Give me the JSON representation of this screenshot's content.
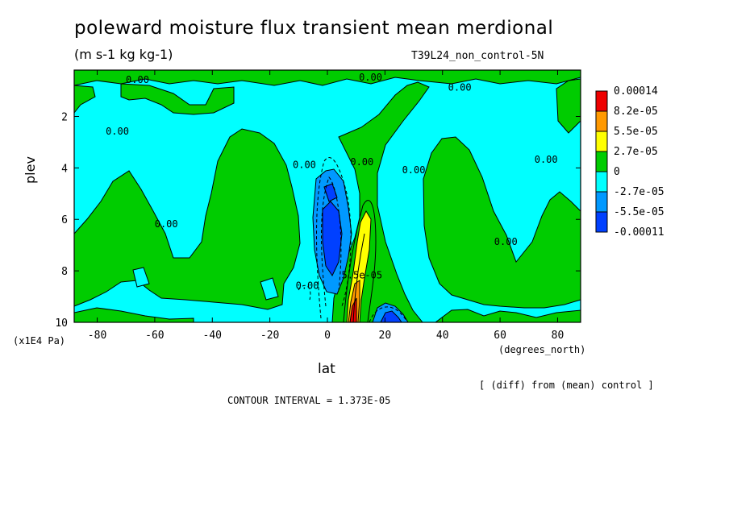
{
  "title": "poleward moisture flux transient mean merdional",
  "units": "(m s-1 kg kg-1)",
  "run_id": "T39L24_non_control-5N",
  "note": "[ (diff) from (mean) control ]",
  "contour_interval": "CONTOUR INTERVAL = 1.373E-05",
  "colors": {
    "red": "#ee0000",
    "orange": "#ff9900",
    "yellow": "#ffff00",
    "green": "#00cc00",
    "cyan": "#00ffff",
    "sky": "#0099ff",
    "blue": "#0040ff"
  },
  "chart_data": {
    "type": "heatmap",
    "title": "poleward moisture flux transient mean merdional",
    "xlabel": "lat",
    "xunit": "(degrees_north)",
    "ylabel": "plev",
    "yunit": "(x1E4 Pa)",
    "xlim": [
      -88,
      88
    ],
    "ylim": [
      10,
      0.2
    ],
    "x_ticks": [
      -80,
      -60,
      -40,
      -20,
      0,
      20,
      40,
      60,
      80
    ],
    "x_tick_labels": [
      "-80",
      "-60",
      "-40",
      "-20",
      "0",
      "20",
      "40",
      "60",
      "80"
    ],
    "y_ticks": [
      2,
      4,
      6,
      8,
      10
    ],
    "y_tick_labels": [
      "2",
      "4",
      "6",
      "8",
      "10"
    ],
    "legend": {
      "placement": "right",
      "labels": [
        "0.00014",
        "8.2e-05",
        "5.5e-05",
        "2.7e-05",
        "0",
        "-2.7e-05",
        "-5.5e-05",
        "-0.00011"
      ],
      "colors": [
        "#ee0000",
        "#ff9900",
        "#ffff00",
        "#00cc00",
        "#00ffff",
        "#0099ff",
        "#0040ff"
      ]
    },
    "contour_labels": [
      {
        "text": "0.00",
        "lat": -66,
        "plev": 0.7
      },
      {
        "text": "0.00",
        "lat": -73,
        "plev": 2.7
      },
      {
        "text": "0.00",
        "lat": -56,
        "plev": 6.3
      },
      {
        "text": "0.00",
        "lat": -7,
        "plev": 8.7
      },
      {
        "text": "0.00",
        "lat": -8,
        "plev": 4.0
      },
      {
        "text": "0.00",
        "lat": 12,
        "plev": 3.9
      },
      {
        "text": "0.00",
        "lat": 15,
        "plev": 0.6
      },
      {
        "text": "0.00",
        "lat": 30,
        "plev": 4.2
      },
      {
        "text": "0.00",
        "lat": 46,
        "plev": 1.0
      },
      {
        "text": "0.00",
        "lat": 62,
        "plev": 7.0
      },
      {
        "text": "0.00",
        "lat": 76,
        "plev": 3.8
      },
      {
        "text": "5.5e-05",
        "lat": 12,
        "plev": 8.3
      }
    ],
    "grid": false
  }
}
